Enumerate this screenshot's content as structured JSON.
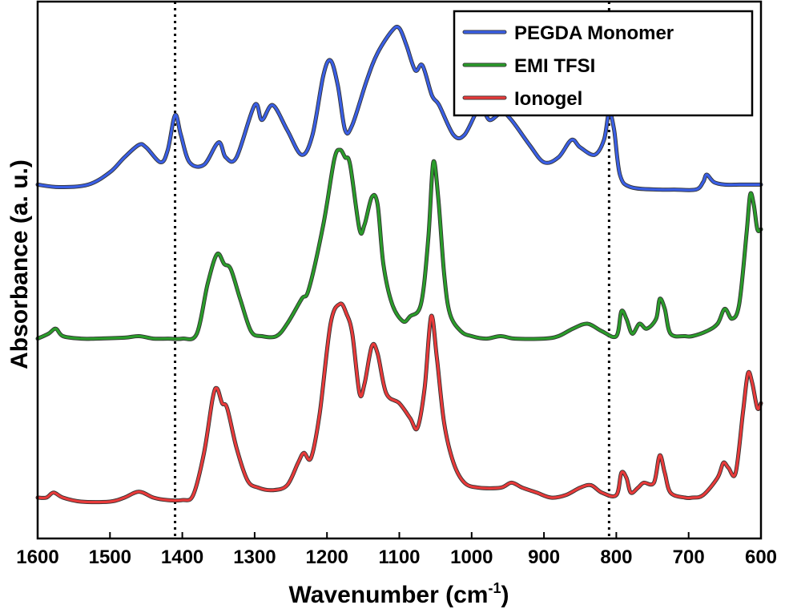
{
  "chart_data": {
    "type": "line",
    "xlabel": "Wavenumber (cm",
    "xlabel_sup": "-1",
    "xlabel_close": ")",
    "ylabel": "Absorbance (a. u.)",
    "xlim": [
      1600,
      600
    ],
    "x_reversed": true,
    "xticks": [
      "1600",
      "1500",
      "1400",
      "1300",
      "1200",
      "1100",
      "1000",
      "900",
      "800",
      "700",
      "600"
    ],
    "y_ticks_shown": false,
    "ylim": [
      0,
      100
    ],
    "grid": false,
    "legend_position": "top-right",
    "reference_lines": [
      1410,
      810
    ],
    "series": [
      {
        "name": "PEGDA Monomer",
        "color": "#3a5fe5",
        "points": [
          [
            1600,
            68
          ],
          [
            1570,
            67.5
          ],
          [
            1530,
            68
          ],
          [
            1500,
            70.5
          ],
          [
            1480,
            73.5
          ],
          [
            1460,
            76
          ],
          [
            1450,
            75.5
          ],
          [
            1430,
            72.5
          ],
          [
            1420,
            75
          ],
          [
            1410,
            82
          ],
          [
            1402,
            78
          ],
          [
            1390,
            72.5
          ],
          [
            1370,
            72
          ],
          [
            1350,
            76.5
          ],
          [
            1340,
            73.5
          ],
          [
            1325,
            73.5
          ],
          [
            1300,
            84
          ],
          [
            1290,
            81
          ],
          [
            1275,
            84
          ],
          [
            1255,
            79
          ],
          [
            1235,
            74
          ],
          [
            1220,
            78
          ],
          [
            1205,
            90
          ],
          [
            1195,
            93
          ],
          [
            1185,
            88
          ],
          [
            1175,
            79
          ],
          [
            1165,
            80
          ],
          [
            1145,
            89
          ],
          [
            1130,
            94.5
          ],
          [
            1110,
            99
          ],
          [
            1100,
            99.5
          ],
          [
            1090,
            96
          ],
          [
            1078,
            91
          ],
          [
            1068,
            92
          ],
          [
            1055,
            86
          ],
          [
            1045,
            84
          ],
          [
            1025,
            78
          ],
          [
            1010,
            78
          ],
          [
            992,
            83
          ],
          [
            985,
            83.5
          ],
          [
            975,
            81
          ],
          [
            958,
            82.5
          ],
          [
            945,
            81
          ],
          [
            920,
            76
          ],
          [
            900,
            72.5
          ],
          [
            880,
            73.5
          ],
          [
            862,
            77
          ],
          [
            850,
            75.5
          ],
          [
            830,
            74
          ],
          [
            817,
            77
          ],
          [
            810,
            82.5
          ],
          [
            803,
            79
          ],
          [
            795,
            70
          ],
          [
            780,
            67.5
          ],
          [
            740,
            67
          ],
          [
            720,
            67
          ],
          [
            690,
            67
          ],
          [
            680,
            68.5
          ],
          [
            675,
            70
          ],
          [
            665,
            68.5
          ],
          [
            650,
            68
          ],
          [
            630,
            68
          ],
          [
            610,
            68
          ],
          [
            600,
            68
          ]
        ]
      },
      {
        "name": "EMI TFSI",
        "color": "#2a9c2a",
        "points": [
          [
            1600,
            37
          ],
          [
            1585,
            38
          ],
          [
            1575,
            39
          ],
          [
            1565,
            37.5
          ],
          [
            1540,
            37
          ],
          [
            1520,
            37
          ],
          [
            1480,
            37.2
          ],
          [
            1460,
            37.5
          ],
          [
            1440,
            37
          ],
          [
            1420,
            37
          ],
          [
            1400,
            37
          ],
          [
            1380,
            38
          ],
          [
            1365,
            48
          ],
          [
            1352,
            54
          ],
          [
            1342,
            52
          ],
          [
            1333,
            51
          ],
          [
            1320,
            45
          ],
          [
            1305,
            38.5
          ],
          [
            1290,
            37.5
          ],
          [
            1270,
            37.5
          ],
          [
            1255,
            40
          ],
          [
            1235,
            45
          ],
          [
            1225,
            47
          ],
          [
            1205,
            60
          ],
          [
            1190,
            73
          ],
          [
            1182,
            75
          ],
          [
            1175,
            73.5
          ],
          [
            1168,
            72
          ],
          [
            1155,
            59
          ],
          [
            1148,
            60
          ],
          [
            1138,
            65.5
          ],
          [
            1130,
            64
          ],
          [
            1122,
            52
          ],
          [
            1110,
            44
          ],
          [
            1095,
            40.5
          ],
          [
            1085,
            41.5
          ],
          [
            1070,
            44
          ],
          [
            1060,
            57
          ],
          [
            1053,
            72.5
          ],
          [
            1046,
            65
          ],
          [
            1038,
            50
          ],
          [
            1030,
            42
          ],
          [
            1015,
            38.5
          ],
          [
            1000,
            37.5
          ],
          [
            980,
            37
          ],
          [
            960,
            37.5
          ],
          [
            940,
            37
          ],
          [
            900,
            37
          ],
          [
            880,
            37.5
          ],
          [
            860,
            39
          ],
          [
            840,
            40
          ],
          [
            820,
            38.5
          ],
          [
            800,
            37.5
          ],
          [
            793,
            42.5
          ],
          [
            786,
            41
          ],
          [
            778,
            38
          ],
          [
            768,
            40
          ],
          [
            758,
            39
          ],
          [
            745,
            41
          ],
          [
            740,
            45
          ],
          [
            733,
            43
          ],
          [
            725,
            38
          ],
          [
            705,
            37.5
          ],
          [
            695,
            37.5
          ],
          [
            675,
            38.5
          ],
          [
            660,
            40
          ],
          [
            650,
            43
          ],
          [
            640,
            41
          ],
          [
            630,
            44
          ],
          [
            620,
            58
          ],
          [
            615,
            66
          ],
          [
            610,
            64
          ],
          [
            605,
            59
          ],
          [
            600,
            59
          ]
        ]
      },
      {
        "name": "Ionogel",
        "color": "#e83a3a",
        "points": [
          [
            1600,
            5
          ],
          [
            1588,
            5
          ],
          [
            1578,
            6
          ],
          [
            1565,
            5
          ],
          [
            1540,
            4.2
          ],
          [
            1500,
            4.2
          ],
          [
            1480,
            5
          ],
          [
            1460,
            6.2
          ],
          [
            1440,
            5
          ],
          [
            1420,
            4.5
          ],
          [
            1400,
            4.5
          ],
          [
            1385,
            5.5
          ],
          [
            1370,
            14
          ],
          [
            1358,
            25
          ],
          [
            1352,
            27
          ],
          [
            1345,
            24
          ],
          [
            1338,
            23
          ],
          [
            1325,
            15
          ],
          [
            1310,
            8.5
          ],
          [
            1295,
            7
          ],
          [
            1275,
            6.5
          ],
          [
            1255,
            7.5
          ],
          [
            1240,
            12
          ],
          [
            1232,
            14
          ],
          [
            1222,
            13
          ],
          [
            1210,
            22
          ],
          [
            1195,
            40
          ],
          [
            1182,
            44
          ],
          [
            1173,
            42
          ],
          [
            1165,
            38
          ],
          [
            1155,
            26
          ],
          [
            1148,
            28
          ],
          [
            1138,
            35.5
          ],
          [
            1130,
            34
          ],
          [
            1118,
            26
          ],
          [
            1100,
            24
          ],
          [
            1085,
            21
          ],
          [
            1075,
            19
          ],
          [
            1065,
            27
          ],
          [
            1056,
            41.5
          ],
          [
            1048,
            33
          ],
          [
            1038,
            20
          ],
          [
            1025,
            12
          ],
          [
            1010,
            8
          ],
          [
            990,
            7
          ],
          [
            960,
            7
          ],
          [
            945,
            8
          ],
          [
            930,
            7
          ],
          [
            910,
            6
          ],
          [
            890,
            5
          ],
          [
            870,
            5.5
          ],
          [
            850,
            7
          ],
          [
            835,
            7.5
          ],
          [
            820,
            6
          ],
          [
            800,
            5.5
          ],
          [
            793,
            10
          ],
          [
            786,
            9
          ],
          [
            780,
            6
          ],
          [
            770,
            7
          ],
          [
            762,
            8
          ],
          [
            748,
            8
          ],
          [
            740,
            13.5
          ],
          [
            733,
            10
          ],
          [
            725,
            6
          ],
          [
            705,
            5
          ],
          [
            695,
            5
          ],
          [
            680,
            5.5
          ],
          [
            660,
            9
          ],
          [
            652,
            12
          ],
          [
            645,
            11
          ],
          [
            635,
            10
          ],
          [
            625,
            22
          ],
          [
            618,
            30
          ],
          [
            612,
            28
          ],
          [
            605,
            23
          ],
          [
            600,
            24
          ]
        ]
      }
    ]
  }
}
